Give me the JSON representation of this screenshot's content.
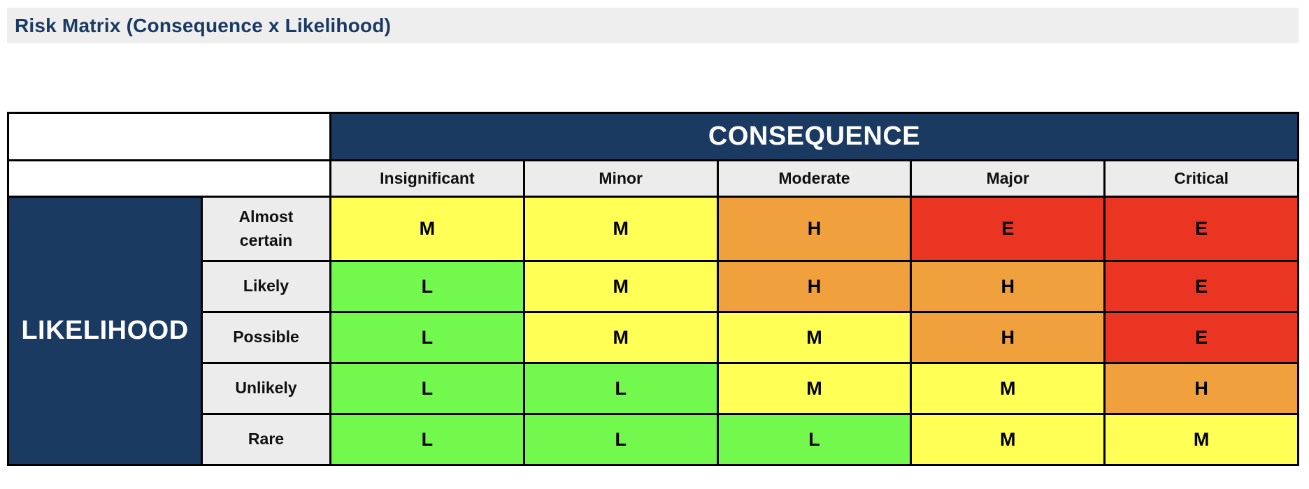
{
  "page": {
    "title": "Risk Matrix (Consequence x Likelihood)"
  },
  "matrix": {
    "consequence_label": "CONSEQUENCE",
    "likelihood_label": "LIKELIHOOD",
    "consequence_levels": [
      "Insignificant",
      "Minor",
      "Moderate",
      "Major",
      "Critical"
    ],
    "likelihood_levels": [
      "Almost certain",
      "Likely",
      "Possible",
      "Unlikely",
      "Rare"
    ],
    "rating_colors": {
      "L": "#73F94E",
      "M": "#FFFF55",
      "H": "#F0A03C",
      "E": "#EA3523"
    },
    "cells": [
      [
        "M",
        "M",
        "H",
        "E",
        "E"
      ],
      [
        "L",
        "M",
        "H",
        "H",
        "E"
      ],
      [
        "L",
        "M",
        "M",
        "H",
        "E"
      ],
      [
        "L",
        "L",
        "M",
        "M",
        "H"
      ],
      [
        "L",
        "L",
        "L",
        "M",
        "M"
      ]
    ]
  },
  "colors": {
    "navy": "#1B3A62",
    "header_cell_bg": "#ECECEC",
    "title_bar_bg": "#EEEEEE",
    "title_text": "#1B3A63",
    "border": "#000000",
    "cell_text": "#000000"
  },
  "chart_data": {
    "type": "heatmap",
    "title": "Risk Matrix (Consequence x Likelihood)",
    "x_axis_label": "CONSEQUENCE",
    "y_axis_label": "LIKELIHOOD",
    "x_categories": [
      "Insignificant",
      "Minor",
      "Moderate",
      "Major",
      "Critical"
    ],
    "y_categories": [
      "Almost certain",
      "Likely",
      "Possible",
      "Unlikely",
      "Rare"
    ],
    "values": [
      [
        "M",
        "M",
        "H",
        "E",
        "E"
      ],
      [
        "L",
        "M",
        "H",
        "H",
        "E"
      ],
      [
        "L",
        "M",
        "M",
        "H",
        "E"
      ],
      [
        "L",
        "L",
        "M",
        "M",
        "H"
      ],
      [
        "L",
        "L",
        "L",
        "M",
        "M"
      ]
    ],
    "cell_colors": {
      "L": "#73F94E",
      "M": "#FFFF55",
      "H": "#F0A03C",
      "E": "#EA3523"
    },
    "layout_hints": {
      "grid": "on",
      "x_header_position": "top",
      "y_header_position": "left"
    }
  }
}
